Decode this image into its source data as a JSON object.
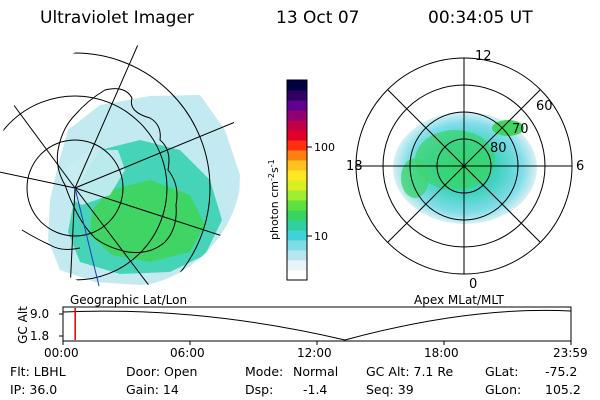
{
  "header": {
    "title": "Ultraviolet Imager",
    "date": "13 Oct 07",
    "time": "00:34:05 UT"
  },
  "colorbar": {
    "unit_label": "photon cm",
    "unit_exp1": "-2",
    "unit_mid": "s",
    "unit_exp2": "-1",
    "tick_100": "100",
    "tick_10": "10",
    "colors": [
      "#ffffff",
      "#e8f4f8",
      "#b8e6ef",
      "#80dde8",
      "#3fd2d8",
      "#30d0a0",
      "#36d460",
      "#60e040",
      "#a0ee30",
      "#d8f020",
      "#ffe820",
      "#ffc020",
      "#ff8010",
      "#ff3010",
      "#e00028",
      "#c00048",
      "#900070",
      "#600090",
      "#300060",
      "#000040"
    ]
  },
  "left_panel": {
    "label": "Geographic Lat/Lon"
  },
  "right_panel": {
    "label": "Apex MLat/MLT",
    "mlt_12": "12",
    "mlt_18": "18",
    "mlt_6": "6",
    "mlt_0": "0",
    "lat_60": "60",
    "lat_70": "70",
    "lat_80": "80"
  },
  "timeline": {
    "axis_label": "GC Alt",
    "y_max": "9.0",
    "y_min": "1.8",
    "ticks": [
      "00:00",
      "06:00",
      "12:00",
      "18:00",
      "23:59"
    ],
    "current_fraction": 0.024
  },
  "status": {
    "flt": "Flt: LBHL",
    "ip": "IP: 36.0",
    "door": "Door: Open",
    "gain": "Gain: 14",
    "mode_label": "Mode:",
    "mode_value": "Normal",
    "dsp_label": "Dsp:",
    "dsp_value": "-1.4",
    "gcalt": "GC Alt: 7.1 Re",
    "seq": "Seq: 39",
    "glat_label": "GLat:",
    "glat_value": "-75.2",
    "glon_label": "GLon:",
    "glon_value": "105.2"
  }
}
